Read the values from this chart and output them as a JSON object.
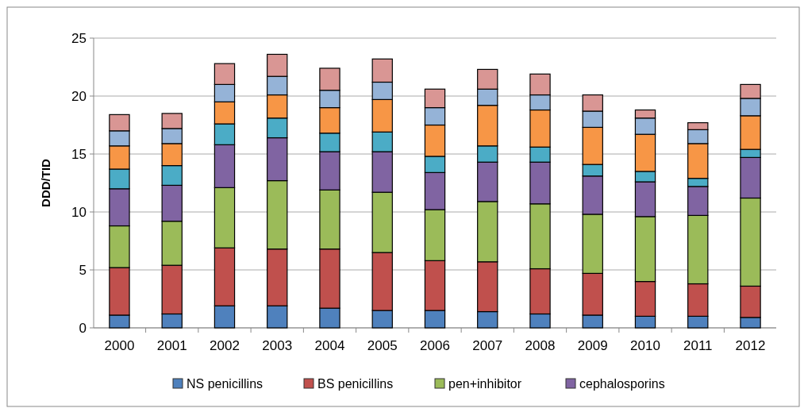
{
  "chart_data": {
    "type": "bar",
    "stacked": true,
    "ylabel": "DDD/TID",
    "categories": [
      "2000",
      "2001",
      "2002",
      "2003",
      "2004",
      "2005",
      "2006",
      "2007",
      "2008",
      "2009",
      "2010",
      "2011",
      "2012"
    ],
    "series": [
      {
        "name": "NS penicillins",
        "color": "#4f81bd",
        "values": [
          1.1,
          1.2,
          1.9,
          1.9,
          1.7,
          1.5,
          1.5,
          1.4,
          1.2,
          1.1,
          1.0,
          1.0,
          0.9
        ]
      },
      {
        "name": "BS penicillins",
        "color": "#c0504d",
        "values": [
          4.1,
          4.2,
          5.0,
          4.9,
          5.1,
          5.0,
          4.3,
          4.3,
          3.9,
          3.6,
          3.0,
          2.8,
          2.7
        ]
      },
      {
        "name": "pen+inhibitor",
        "color": "#9bbb59",
        "values": [
          3.6,
          3.8,
          5.2,
          5.9,
          5.1,
          5.2,
          4.4,
          5.2,
          5.6,
          5.1,
          5.6,
          5.9,
          7.6
        ]
      },
      {
        "name": "cephalosporins",
        "color": "#8064a2",
        "values": [
          3.2,
          3.1,
          3.7,
          3.7,
          3.3,
          3.5,
          3.2,
          3.4,
          3.6,
          3.3,
          3.0,
          2.5,
          3.5
        ]
      },
      {
        "color": "#4bacc6",
        "values": [
          1.7,
          1.7,
          1.8,
          1.7,
          1.6,
          1.7,
          1.4,
          1.4,
          1.3,
          1.0,
          0.9,
          0.7,
          0.7
        ]
      },
      {
        "color": "#f79646",
        "values": [
          2.0,
          1.9,
          1.9,
          2.0,
          2.2,
          2.8,
          2.7,
          3.5,
          3.2,
          3.2,
          3.2,
          3.0,
          2.9
        ]
      },
      {
        "color": "#95b3d7",
        "values": [
          1.3,
          1.3,
          1.5,
          1.6,
          1.5,
          1.5,
          1.5,
          1.4,
          1.3,
          1.4,
          1.4,
          1.2,
          1.5
        ]
      },
      {
        "color": "#d99694",
        "values": [
          1.4,
          1.3,
          1.8,
          1.9,
          1.9,
          2.0,
          1.6,
          1.7,
          1.8,
          1.4,
          0.7,
          0.6,
          1.2
        ]
      }
    ],
    "ylim": [
      0,
      25
    ],
    "yticks": [
      0,
      5,
      10,
      15,
      20,
      25
    ],
    "grid": "y",
    "legend": "bottom"
  }
}
